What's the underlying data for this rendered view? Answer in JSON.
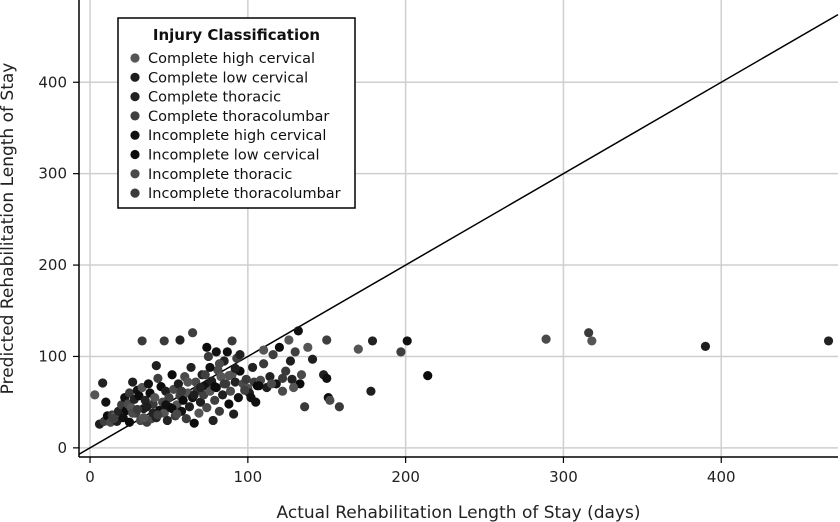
{
  "chart_data": {
    "type": "scatter",
    "xlabel": "Actual Rehabilitation Length of Stay (days)",
    "ylabel": "Predicted Rehabilitation Length of Stay",
    "xlim": [
      -7,
      474
    ],
    "ylim": [
      -10,
      490
    ],
    "xticks": [
      0,
      100,
      200,
      300,
      400
    ],
    "yticks": [
      0,
      100,
      200,
      300,
      400
    ],
    "grid": true,
    "reference_line": "y = x",
    "legend": {
      "title": "Injury Classification",
      "placement": "top-left",
      "entries": [
        {
          "label": "Complete high cervical",
          "color": "#555555"
        },
        {
          "label": "Complete low cervical",
          "color": "#1e1e1e"
        },
        {
          "label": "Complete thoracic",
          "color": "#222222"
        },
        {
          "label": "Complete thoracolumbar",
          "color": "#3f3f3f"
        },
        {
          "label": "Incomplete high cervical",
          "color": "#111111"
        },
        {
          "label": "Incomplete low cervical",
          "color": "#0c0c0c"
        },
        {
          "label": "Incomplete thoracic",
          "color": "#4a4a4a"
        },
        {
          "label": "Incomplete thoracolumbar",
          "color": "#3a3a3a"
        }
      ]
    },
    "points": [
      [
        3,
        58
      ],
      [
        6,
        26
      ],
      [
        8,
        71
      ],
      [
        9,
        29
      ],
      [
        10,
        50
      ],
      [
        11,
        35
      ],
      [
        13,
        28
      ],
      [
        14,
        36
      ],
      [
        16,
        35
      ],
      [
        17,
        29
      ],
      [
        18,
        40
      ],
      [
        20,
        47
      ],
      [
        22,
        55
      ],
      [
        23,
        41
      ],
      [
        24,
        48
      ],
      [
        25,
        60
      ],
      [
        26,
        44
      ],
      [
        27,
        72
      ],
      [
        28,
        53
      ],
      [
        29,
        38
      ],
      [
        30,
        63
      ],
      [
        31,
        57
      ],
      [
        32,
        30
      ],
      [
        33,
        117
      ],
      [
        33,
        66
      ],
      [
        34,
        43
      ],
      [
        35,
        52
      ],
      [
        36,
        28
      ],
      [
        37,
        70
      ],
      [
        38,
        60
      ],
      [
        39,
        32
      ],
      [
        40,
        48
      ],
      [
        41,
        55
      ],
      [
        42,
        90
      ],
      [
        42,
        33
      ],
      [
        43,
        76
      ],
      [
        44,
        41
      ],
      [
        45,
        67
      ],
      [
        46,
        50
      ],
      [
        47,
        117
      ],
      [
        47,
        38
      ],
      [
        48,
        62
      ],
      [
        49,
        30
      ],
      [
        50,
        55
      ],
      [
        51,
        44
      ],
      [
        52,
        80
      ],
      [
        53,
        64
      ],
      [
        54,
        35
      ],
      [
        55,
        47
      ],
      [
        56,
        70
      ],
      [
        57,
        118
      ],
      [
        57,
        57
      ],
      [
        58,
        40
      ],
      [
        59,
        52
      ],
      [
        60,
        78
      ],
      [
        61,
        32
      ],
      [
        62,
        60
      ],
      [
        63,
        45
      ],
      [
        64,
        88
      ],
      [
        65,
        126
      ],
      [
        65,
        55
      ],
      [
        66,
        27
      ],
      [
        67,
        72
      ],
      [
        68,
        63
      ],
      [
        69,
        38
      ],
      [
        70,
        50
      ],
      [
        71,
        80
      ],
      [
        72,
        58
      ],
      [
        73,
        68
      ],
      [
        74,
        110
      ],
      [
        74,
        44
      ],
      [
        75,
        100
      ],
      [
        76,
        62
      ],
      [
        77,
        73
      ],
      [
        78,
        30
      ],
      [
        79,
        52
      ],
      [
        80,
        105
      ],
      [
        80,
        66
      ],
      [
        81,
        85
      ],
      [
        82,
        40
      ],
      [
        83,
        78
      ],
      [
        84,
        58
      ],
      [
        85,
        95
      ],
      [
        86,
        70
      ],
      [
        87,
        105
      ],
      [
        88,
        48
      ],
      [
        89,
        62
      ],
      [
        90,
        117
      ],
      [
        90,
        80
      ],
      [
        91,
        37
      ],
      [
        92,
        72
      ],
      [
        93,
        98
      ],
      [
        94,
        55
      ],
      [
        95,
        84
      ],
      [
        97,
        70
      ],
      [
        99,
        75
      ],
      [
        100,
        65
      ],
      [
        101,
        60
      ],
      [
        103,
        88
      ],
      [
        104,
        72
      ],
      [
        105,
        50
      ],
      [
        106,
        68
      ],
      [
        108,
        74
      ],
      [
        110,
        92
      ],
      [
        110,
        107
      ],
      [
        112,
        66
      ],
      [
        114,
        78
      ],
      [
        116,
        102
      ],
      [
        118,
        70
      ],
      [
        120,
        110
      ],
      [
        122,
        62
      ],
      [
        124,
        84
      ],
      [
        126,
        118
      ],
      [
        127,
        95
      ],
      [
        128,
        75
      ],
      [
        130,
        105
      ],
      [
        132,
        128
      ],
      [
        133,
        70
      ],
      [
        134,
        80
      ],
      [
        136,
        45
      ],
      [
        138,
        110
      ],
      [
        141,
        97
      ],
      [
        148,
        80
      ],
      [
        150,
        118
      ],
      [
        150,
        76
      ],
      [
        151,
        55
      ],
      [
        152,
        52
      ],
      [
        158,
        45
      ],
      [
        170,
        108
      ],
      [
        178,
        62
      ],
      [
        179,
        117
      ],
      [
        197,
        105
      ],
      [
        201,
        117
      ],
      [
        214,
        79
      ],
      [
        289,
        119
      ],
      [
        316,
        126
      ],
      [
        318,
        117
      ],
      [
        390,
        111
      ],
      [
        468,
        117
      ],
      [
        15,
        32
      ],
      [
        21,
        33
      ],
      [
        25,
        28
      ],
      [
        27,
        38
      ],
      [
        30,
        42
      ],
      [
        34,
        33
      ],
      [
        36,
        45
      ],
      [
        40,
        38
      ],
      [
        43,
        36
      ],
      [
        48,
        47
      ],
      [
        52,
        43
      ],
      [
        55,
        37
      ],
      [
        58,
        62
      ],
      [
        62,
        72
      ],
      [
        66,
        58
      ],
      [
        70,
        66
      ],
      [
        73,
        80
      ],
      [
        76,
        88
      ],
      [
        79,
        67
      ],
      [
        82,
        92
      ],
      [
        85,
        70
      ],
      [
        88,
        79
      ],
      [
        92,
        87
      ],
      [
        95,
        102
      ],
      [
        98,
        63
      ],
      [
        102,
        55
      ],
      [
        107,
        68
      ],
      [
        115,
        70
      ],
      [
        122,
        76
      ],
      [
        129,
        66
      ]
    ]
  }
}
